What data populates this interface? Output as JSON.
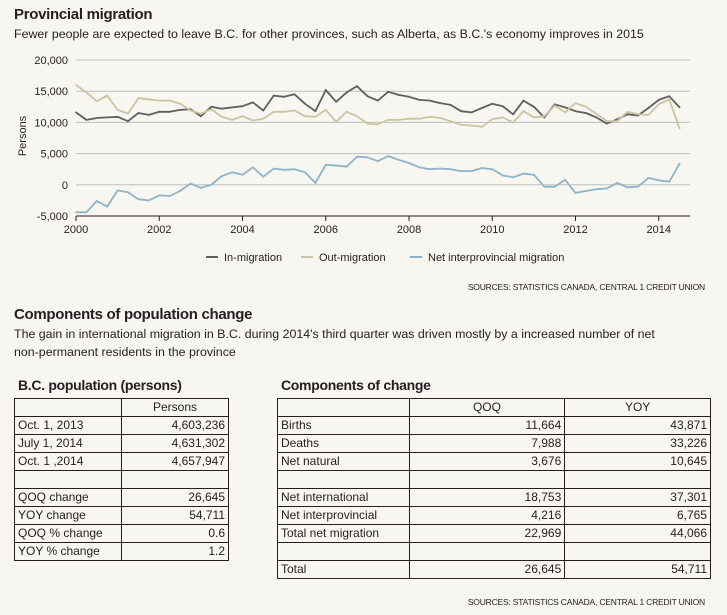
{
  "section1": {
    "title": "Provincial migration",
    "subtitle": "Fewer people are expected to leave B.C. for other provinces, such as Alberta, as B.C.'s economy improves in 2015",
    "source": "SOURCES: STATISTICS CANADA, CENTRAL 1 CREDIT UNION"
  },
  "chart_data": {
    "type": "line",
    "title": "Provincial migration",
    "ylabel": "Persons",
    "xlabel": "",
    "ylim": [
      -5000,
      20000
    ],
    "xlim": [
      2000,
      2014.75
    ],
    "yticks": [
      -5000,
      0,
      5000,
      10000,
      15000,
      20000
    ],
    "ytick_labels": [
      "-5,000",
      "0",
      "5,000",
      "10,000",
      "15,000",
      "20,000"
    ],
    "xticks": [
      2000,
      2002,
      2004,
      2006,
      2008,
      2010,
      2012,
      2014
    ],
    "xtick_labels": [
      "2000",
      "2002",
      "2004",
      "2006",
      "2008",
      "2010",
      "2012",
      "2014"
    ],
    "grid": true,
    "legend_position": "bottom",
    "x": [
      2000,
      2000.25,
      2000.5,
      2000.75,
      2001,
      2001.25,
      2001.5,
      2001.75,
      2002,
      2002.25,
      2002.5,
      2002.75,
      2003,
      2003.25,
      2003.5,
      2003.75,
      2004,
      2004.25,
      2004.5,
      2004.75,
      2005,
      2005.25,
      2005.5,
      2005.75,
      2006,
      2006.25,
      2006.5,
      2006.75,
      2007,
      2007.25,
      2007.5,
      2007.75,
      2008,
      2008.25,
      2008.5,
      2008.75,
      2009,
      2009.25,
      2009.5,
      2009.75,
      2010,
      2010.25,
      2010.5,
      2010.75,
      2011,
      2011.25,
      2011.5,
      2011.75,
      2012,
      2012.25,
      2012.5,
      2012.75,
      2013,
      2013.25,
      2013.5,
      2013.75,
      2014,
      2014.25,
      2014.5
    ],
    "series": [
      {
        "name": "In-migration",
        "color": "#5f5f5f",
        "values": [
          11600,
          10400,
          10700,
          10800,
          10900,
          10200,
          11500,
          11200,
          11700,
          11700,
          12000,
          12100,
          11000,
          12500,
          12200,
          12400,
          12600,
          13200,
          11900,
          14300,
          14100,
          14500,
          13000,
          11800,
          15200,
          13300,
          14800,
          15800,
          14200,
          13500,
          14900,
          14400,
          14100,
          13600,
          13500,
          13100,
          12800,
          11800,
          11600,
          12300,
          13000,
          12600,
          11300,
          13500,
          12500,
          10800,
          12900,
          12400,
          11800,
          11500,
          10800,
          9800,
          10500,
          11300,
          11100,
          12300,
          13600,
          14200,
          12400
        ]
      },
      {
        "name": "Out-migration",
        "color": "#c6c7a0",
        "values": [
          16000,
          14800,
          13400,
          14300,
          12000,
          11400,
          13900,
          13700,
          13500,
          13500,
          13000,
          11900,
          11400,
          12100,
          10900,
          10400,
          11000,
          10300,
          10600,
          11700,
          11700,
          11900,
          11000,
          10900,
          12000,
          10100,
          11700,
          11000,
          9800,
          9700,
          10400,
          10400,
          10600,
          10600,
          10900,
          10700,
          10200,
          9600,
          9500,
          9300,
          10500,
          10800,
          10000,
          11800,
          10800,
          11000,
          12700,
          11600,
          13100,
          12500,
          11400,
          10200,
          10200,
          11700,
          11300,
          11200,
          12900,
          13700,
          9000
        ]
      },
      {
        "name": "Net interprovincial migration",
        "color": "#8eb4c8",
        "values": [
          -4400,
          -4400,
          -2600,
          -3500,
          -900,
          -1200,
          -2300,
          -2500,
          -1700,
          -1800,
          -1000,
          200,
          -500,
          0,
          1400,
          2000,
          1600,
          2800,
          1300,
          2600,
          2400,
          2500,
          2000,
          300,
          3200,
          3100,
          2900,
          4500,
          4400,
          3800,
          4600,
          4000,
          3500,
          2800,
          2500,
          2600,
          2500,
          2200,
          2200,
          2700,
          2500,
          1500,
          1200,
          1800,
          1600,
          -300,
          -300,
          800,
          -1300,
          -1000,
          -700,
          -600,
          300,
          -400,
          -300,
          1100,
          700,
          500,
          3400
        ]
      }
    ]
  },
  "section2": {
    "title": "Components of population change",
    "subtitle_line1": "The gain in international migration in B.C. during 2014's third quarter was driven mostly by a increased number of net",
    "subtitle_line2": "non-permanent residents in the province",
    "source": "SOURCES: STATISTICS CANADA, CENTRAL 1 CREDIT UNION"
  },
  "population_table": {
    "title": "B.C. population (persons)",
    "header": [
      "",
      "Persons"
    ],
    "rows": [
      [
        "Oct. 1, 2013",
        "4,603,236"
      ],
      [
        "July 1, 2014",
        "4,631,302"
      ],
      [
        "Oct. 1 ,2014",
        "4,657,947"
      ],
      [
        "",
        ""
      ],
      [
        "QOQ change",
        "26,645"
      ],
      [
        "YOY change",
        "54,711"
      ],
      [
        "QOQ % change",
        "0.6"
      ],
      [
        "YOY % change",
        "1.2"
      ]
    ]
  },
  "components_table": {
    "title": "Components of change",
    "header": [
      "",
      "QOQ",
      "YOY"
    ],
    "rows": [
      [
        "Births",
        "11,664",
        "43,871"
      ],
      [
        "Deaths",
        "7,988",
        "33,226"
      ],
      [
        "Net natural",
        "3,676",
        "10,645"
      ],
      [
        "",
        "",
        ""
      ],
      [
        "Net international",
        "18,753",
        "37,301"
      ],
      [
        "Net interprovincial",
        "4,216",
        "6,765"
      ],
      [
        "Total net migration",
        "22,969",
        "44,066"
      ],
      [
        "",
        "",
        ""
      ],
      [
        "Total",
        "26,645",
        "54,711"
      ]
    ]
  }
}
